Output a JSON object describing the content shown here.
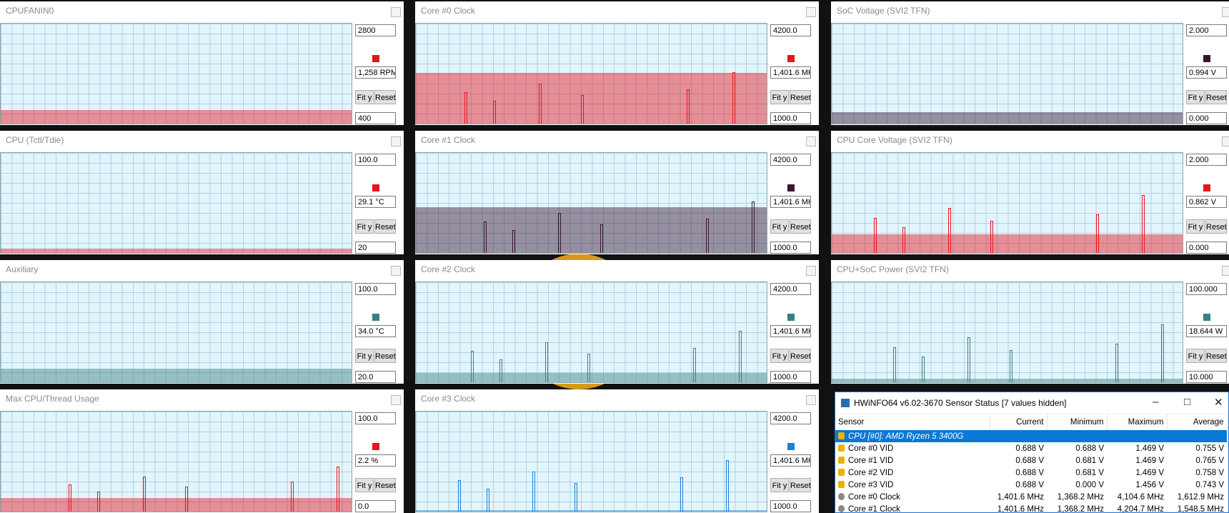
{
  "panels": [
    {
      "title": "CPUFANIN0",
      "max": "2800",
      "current": "1,258 RPM",
      "min": "400",
      "color": "#e8141c"
    },
    {
      "title": "Core #0 Clock",
      "max": "4200.0",
      "current": "1,401.6 MH.",
      "min": "1000.0",
      "color": "#e8141c"
    },
    {
      "title": "SoC Voltage (SVI2 TFN)",
      "max": "2.000",
      "current": "0.994 V",
      "min": "0.000",
      "color": "#3a1530"
    },
    {
      "title": "CPU (Tctl/Tdie)",
      "max": "100.0",
      "current": "29.1 °C",
      "min": "20",
      "color": "#e8141c"
    },
    {
      "title": "Core #1 Clock",
      "max": "4200.0",
      "current": "1,401.6 MH.",
      "min": "1000.0",
      "color": "#3a1530"
    },
    {
      "title": "CPU Core Voltage (SVI2 TFN)",
      "max": "2.000",
      "current": "0.862 V",
      "min": "0.000",
      "color": "#e8141c"
    },
    {
      "title": "Auxiliary",
      "max": "100.0",
      "current": "34.0 °C",
      "min": "20.0",
      "color": "#3c7f80"
    },
    {
      "title": "Core #2 Clock",
      "max": "4200.0",
      "current": "1,401.6 MH.",
      "min": "1000.0",
      "color": "#3c7f80"
    },
    {
      "title": "CPU+SoC Power (SVI2 TFN)",
      "max": "100.000",
      "current": "18.644 W",
      "min": "10.000",
      "color": "#3c7f80"
    },
    {
      "title": "Max CPU/Thread Usage",
      "max": "100.0",
      "current": "2.2 %",
      "min": "0.0",
      "color": "#e8141c"
    },
    {
      "title": "Core #3 Clock",
      "max": "4200.0",
      "current": "1,401.6 MH.",
      "min": "1000.0",
      "color": "#1b7fd6"
    }
  ],
  "buttons": {
    "fit": "Fit y",
    "reset": "Reset"
  },
  "hwinfo": {
    "title": "HWiNFO64 v6.02-3670 Sensor Status [7 values hidden]",
    "columns": [
      "Sensor",
      "Current",
      "Minimum",
      "Maximum",
      "Average"
    ],
    "group": "CPU [#0]: AMD Ryzen 5 3400G",
    "rows": [
      [
        "Core #0 VID",
        "0.688 V",
        "0.688 V",
        "1.469 V",
        "0.755 V"
      ],
      [
        "Core #1 VID",
        "0.688 V",
        "0.681 V",
        "1.469 V",
        "0.765 V"
      ],
      [
        "Core #2 VID",
        "0.688 V",
        "0.681 V",
        "1.469 V",
        "0.758 V"
      ],
      [
        "Core #3 VID",
        "0.688 V",
        "0.000 V",
        "1.456 V",
        "0.743 V"
      ],
      [
        "Core #0 Clock",
        "1,401.6 MHz",
        "1,368.2 MHz",
        "4,104.6 MHz",
        "1,612.9 MHz"
      ],
      [
        "Core #1 Clock",
        "1,401.6 MHz",
        "1,368.2 MHz",
        "4,204.7 MHz",
        "1,548.5 MHz"
      ]
    ]
  }
}
